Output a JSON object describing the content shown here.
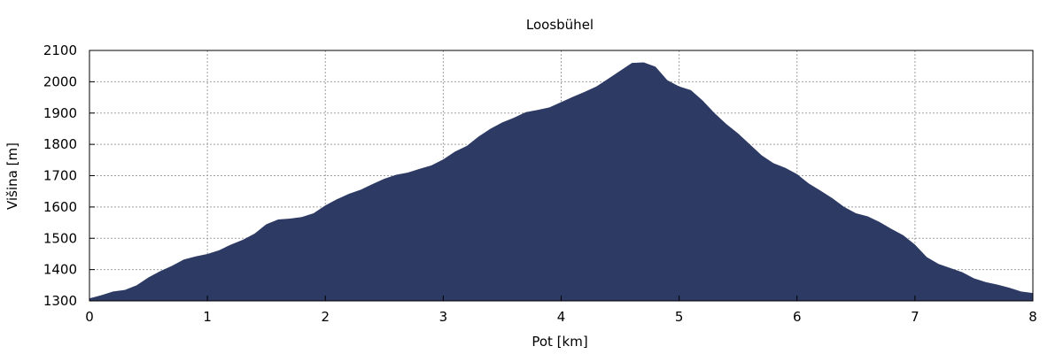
{
  "chart_data": {
    "type": "area",
    "title": "Loosbühel",
    "xlabel": "Pot [km]",
    "ylabel": "Višina [m]",
    "xlim": [
      0,
      8
    ],
    "ylim": [
      1300,
      2100
    ],
    "xticks": [
      0,
      1,
      2,
      3,
      4,
      5,
      6,
      7,
      8
    ],
    "yticks": [
      1300,
      1400,
      1500,
      1600,
      1700,
      1800,
      1900,
      2000,
      2100
    ],
    "grid": true,
    "fill_color": "#2d3a64",
    "x": [
      0,
      0.1,
      0.2,
      0.3,
      0.4,
      0.5,
      0.6,
      0.7,
      0.8,
      0.9,
      1.0,
      1.1,
      1.2,
      1.3,
      1.4,
      1.5,
      1.6,
      1.7,
      1.8,
      1.9,
      2.0,
      2.1,
      2.2,
      2.3,
      2.4,
      2.5,
      2.6,
      2.7,
      2.8,
      2.9,
      3.0,
      3.1,
      3.2,
      3.3,
      3.4,
      3.5,
      3.6,
      3.7,
      3.8,
      3.9,
      4.0,
      4.1,
      4.2,
      4.3,
      4.4,
      4.5,
      4.6,
      4.7,
      4.8,
      4.9,
      5.0,
      5.1,
      5.2,
      5.3,
      5.4,
      5.5,
      5.6,
      5.7,
      5.8,
      5.9,
      6.0,
      6.1,
      6.2,
      6.3,
      6.4,
      6.5,
      6.6,
      6.7,
      6.8,
      6.9,
      7.0,
      7.1,
      7.2,
      7.3,
      7.4,
      7.5,
      7.6,
      7.7,
      7.8,
      7.9,
      8.0
    ],
    "y": [
      1308,
      1318,
      1330,
      1335,
      1350,
      1375,
      1395,
      1412,
      1432,
      1442,
      1450,
      1462,
      1480,
      1495,
      1515,
      1545,
      1560,
      1563,
      1568,
      1580,
      1605,
      1625,
      1642,
      1655,
      1673,
      1690,
      1703,
      1710,
      1722,
      1733,
      1752,
      1777,
      1795,
      1825,
      1850,
      1870,
      1885,
      1903,
      1910,
      1918,
      1935,
      1952,
      1968,
      1985,
      2010,
      2035,
      2060,
      2062,
      2048,
      2005,
      1985,
      1973,
      1940,
      1900,
      1865,
      1835,
      1800,
      1765,
      1740,
      1725,
      1705,
      1675,
      1652,
      1628,
      1600,
      1580,
      1570,
      1552,
      1530,
      1510,
      1480,
      1440,
      1418,
      1405,
      1392,
      1372,
      1360,
      1352,
      1342,
      1330,
      1325
    ]
  }
}
